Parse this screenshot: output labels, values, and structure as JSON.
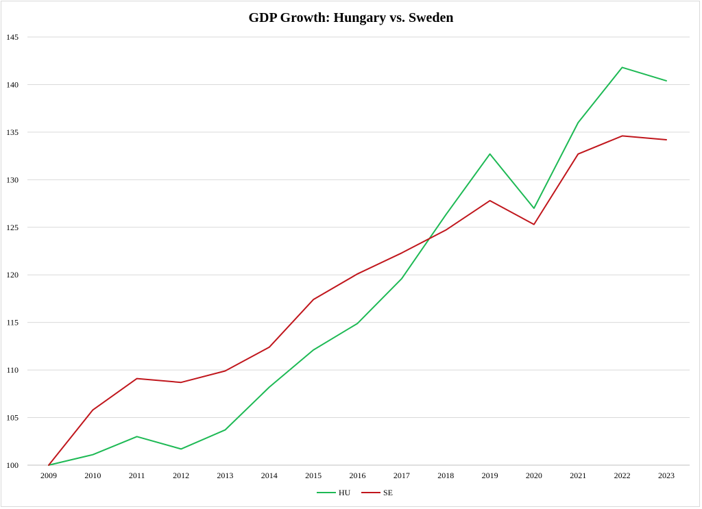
{
  "chart_data": {
    "type": "line",
    "title": "GDP Growth: Hungary vs. Sweden",
    "xlabel": "",
    "ylabel": "",
    "x": [
      "2009",
      "2010",
      "2011",
      "2012",
      "2013",
      "2014",
      "2015",
      "2016",
      "2017",
      "2018",
      "2019",
      "2020",
      "2021",
      "2022",
      "2023"
    ],
    "ylim": [
      100,
      145
    ],
    "yticks": [
      100,
      105,
      110,
      115,
      120,
      125,
      130,
      135,
      140,
      145
    ],
    "grid": true,
    "legend_position": "bottom-center",
    "series": [
      {
        "name": "HU",
        "color": "#1db954",
        "values": [
          100.0,
          101.1,
          103.0,
          101.7,
          103.7,
          108.2,
          112.1,
          114.9,
          119.6,
          126.3,
          132.7,
          127.0,
          136.0,
          141.8,
          140.4
        ]
      },
      {
        "name": "SE",
        "color": "#c0161c",
        "values": [
          100.0,
          105.8,
          109.1,
          108.7,
          109.9,
          112.4,
          117.4,
          120.1,
          122.3,
          124.7,
          127.8,
          125.3,
          132.7,
          134.6,
          134.2
        ]
      }
    ]
  }
}
